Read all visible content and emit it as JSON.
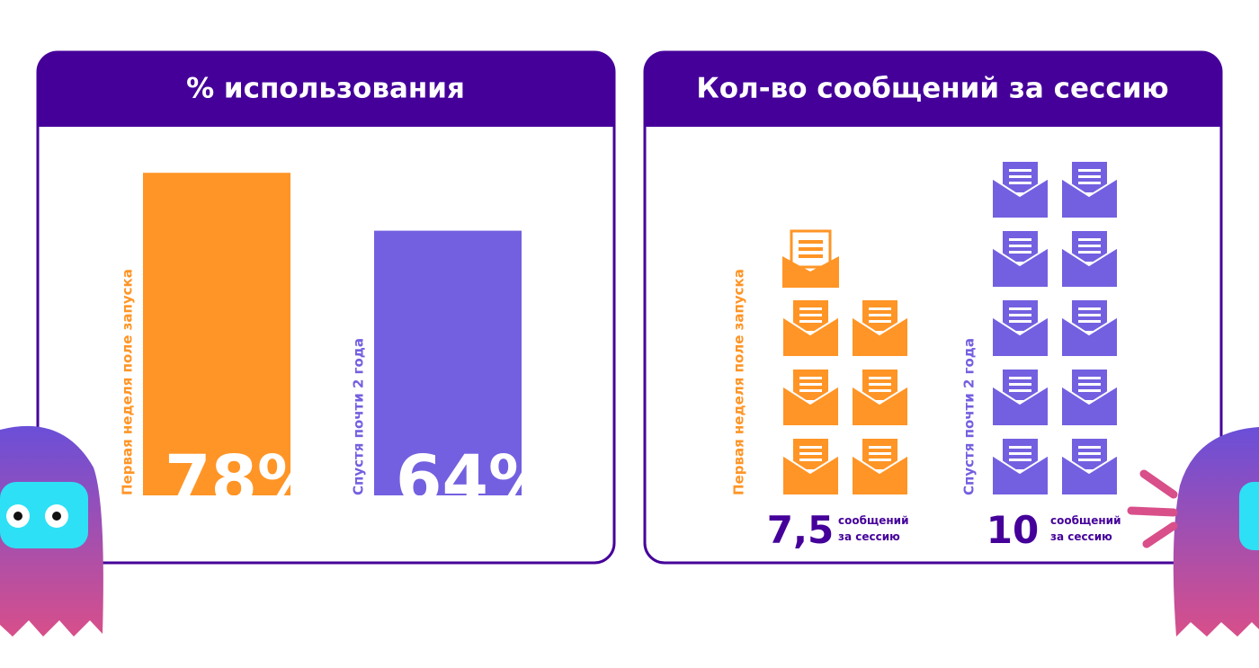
{
  "chart_data": [
    {
      "type": "bar",
      "title": "% использования",
      "categories": [
        "Первая неделя поле запуска",
        "Спустя почти 2 года"
      ],
      "values": [
        78,
        64
      ],
      "value_labels": [
        "78%",
        "64%"
      ],
      "colors": [
        "#ff9526",
        "#7360e0"
      ]
    },
    {
      "type": "pictograph",
      "title": "Кол-во сообщений за сессию",
      "categories": [
        "Первая неделя поле запуска",
        "Спустя почти 2 года"
      ],
      "values": [
        7.5,
        10
      ],
      "value_labels": [
        "7,5",
        "10"
      ],
      "value_suffix": [
        "сообщений",
        "за сессию"
      ],
      "colors": [
        "#ff9526",
        "#7360e0"
      ]
    }
  ]
}
